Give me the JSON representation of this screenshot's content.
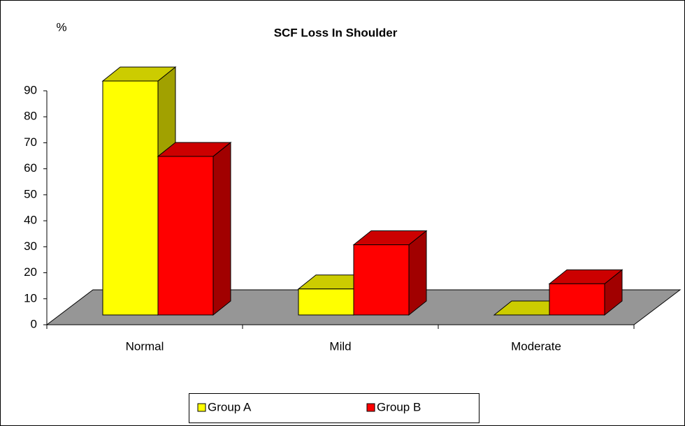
{
  "chart_data": {
    "type": "bar3d",
    "title": "SCF Loss In Shoulder",
    "y_label": "%",
    "categories": [
      "Normal",
      "Mild",
      "Moderate"
    ],
    "series": [
      {
        "name": "Group A",
        "color": "#ffff00",
        "values": [
          90,
          10,
          0
        ]
      },
      {
        "name": "Group B",
        "color": "#ff0000",
        "values": [
          61,
          27,
          12
        ]
      }
    ],
    "ylim": [
      0,
      90
    ],
    "yticks": [
      0,
      10,
      20,
      30,
      40,
      50,
      60,
      70,
      80,
      90
    ],
    "legend": "bottom"
  }
}
